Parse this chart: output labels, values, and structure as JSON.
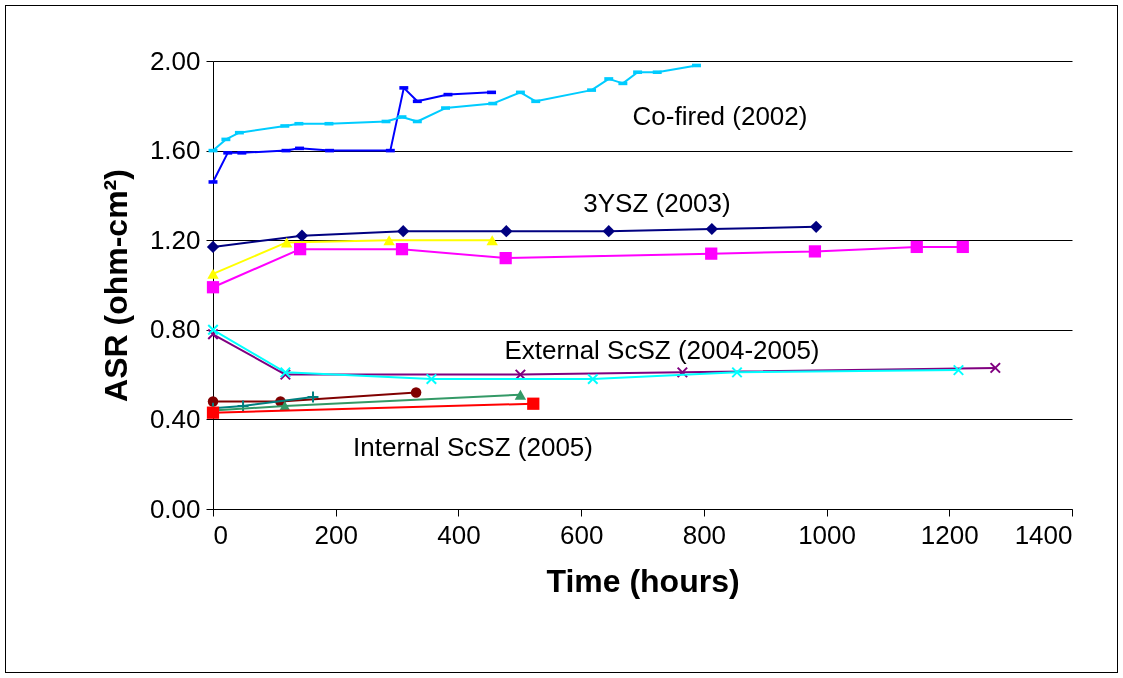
{
  "chart_data": {
    "type": "line",
    "xlabel": "Time (hours)",
    "ylabel": "ASR (ohm-cm²)",
    "xlim": [
      0,
      1400
    ],
    "xticks": [
      0,
      200,
      400,
      600,
      800,
      1000,
      1200,
      1400
    ],
    "ylim": [
      0,
      2
    ],
    "yticks": [
      {
        "value": 0,
        "label": "0.00"
      },
      {
        "value": 0.4,
        "label": "0.40"
      },
      {
        "value": 0.8,
        "label": "0.80"
      },
      {
        "value": 1.2,
        "label": "1.20"
      },
      {
        "value": 1.6,
        "label": "1.60"
      },
      {
        "value": 2,
        "label": "2.00"
      }
    ],
    "grid": "y",
    "series": [
      {
        "color": "#0000ff",
        "marker": "square",
        "x": [
          0,
          24,
          47,
          119,
          141,
          190,
          289,
          311,
          333,
          383,
          454
        ],
        "values": [
          1.46,
          1.59,
          1.59,
          1.6,
          1.61,
          1.6,
          1.6,
          1.88,
          1.82,
          1.85,
          1.86
        ]
      },
      {
        "color": "#00ccff",
        "marker": "square",
        "x": [
          0,
          21,
          43,
          117,
          140,
          189,
          282,
          308,
          333,
          379,
          456,
          501,
          526,
          617,
          645,
          668,
          692,
          724,
          788
        ],
        "values": [
          1.6,
          1.65,
          1.68,
          1.71,
          1.72,
          1.72,
          1.73,
          1.75,
          1.73,
          1.79,
          1.81,
          1.86,
          1.82,
          1.87,
          1.92,
          1.9,
          1.95,
          1.95,
          1.98
        ]
      },
      {
        "color": "#000080",
        "marker": "diamond",
        "x": [
          0,
          145,
          310,
          478,
          645,
          813,
          983
        ],
        "values": [
          1.17,
          1.22,
          1.24,
          1.24,
          1.24,
          1.25,
          1.26
        ]
      },
      {
        "color": "#ffff00",
        "marker": "triangle",
        "x": [
          0,
          120,
          287,
          455
        ],
        "values": [
          1.05,
          1.19,
          1.2,
          1.2
        ]
      },
      {
        "color": "#ff00ff",
        "marker": "square",
        "x": [
          0,
          142,
          308,
          477,
          812,
          981,
          1147,
          1222
        ],
        "values": [
          0.99,
          1.16,
          1.16,
          1.12,
          1.14,
          1.15,
          1.17,
          1.17
        ]
      },
      {
        "color": "#800080",
        "marker": "x",
        "x": [
          0,
          118,
          501,
          765,
          1275
        ],
        "values": [
          0.78,
          0.6,
          0.6,
          0.61,
          0.63
        ]
      },
      {
        "color": "#00ffff",
        "marker": "x",
        "x": [
          0,
          118,
          356,
          619,
          854,
          1215
        ],
        "values": [
          0.8,
          0.61,
          0.58,
          0.58,
          0.61,
          0.62
        ]
      },
      {
        "color": "#800000",
        "marker": "circle",
        "x": [
          0,
          110,
          331
        ],
        "values": [
          0.48,
          0.48,
          0.52
        ]
      },
      {
        "color": "#008080",
        "marker": "cross",
        "x": [
          0,
          49,
          163
        ],
        "values": [
          0.45,
          0.46,
          0.5
        ]
      },
      {
        "color": "#339966",
        "marker": "triangle",
        "x": [
          0,
          117,
          501
        ],
        "values": [
          0.44,
          0.46,
          0.51
        ]
      },
      {
        "color": "#ff0000",
        "marker": "square",
        "x": [
          0,
          522
        ],
        "values": [
          0.43,
          0.47
        ]
      }
    ],
    "annotations": [
      "Co-fired (2002)",
      "3YSZ (2003)",
      "External ScSZ (2004-2005)",
      "Internal ScSZ (2005)"
    ]
  }
}
